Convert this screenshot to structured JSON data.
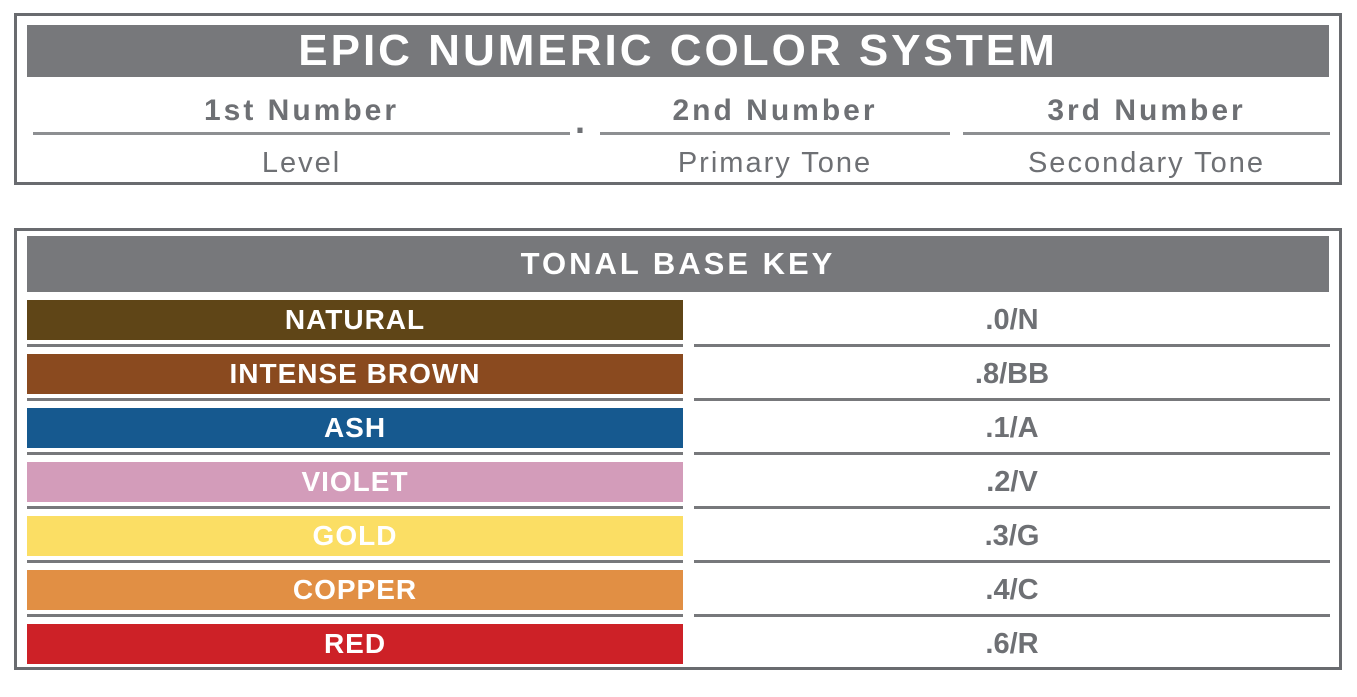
{
  "top_panel": {
    "title": "EPIC NUMERIC COLOR SYSTEM",
    "separator_dot": ".",
    "columns": [
      {
        "number": "1st Number",
        "label": "Level"
      },
      {
        "number": "2nd Number",
        "label": "Primary Tone"
      },
      {
        "number": "3rd Number",
        "label": "Secondary Tone"
      }
    ]
  },
  "tonal_key": {
    "title": "TONAL BASE KEY",
    "rows": [
      {
        "name": "NATURAL",
        "code": ".0/N",
        "color": "#5F4517"
      },
      {
        "name": "INTENSE BROWN",
        "code": ".8/BB",
        "color": "#8A4A1F"
      },
      {
        "name": "ASH",
        "code": ".1/A",
        "color": "#16598F"
      },
      {
        "name": "VIOLET",
        "code": ".2/V",
        "color": "#D39CBA"
      },
      {
        "name": "GOLD",
        "code": ".3/G",
        "color": "#FBDE64"
      },
      {
        "name": "COPPER",
        "code": ".4/C",
        "color": "#E18F44"
      },
      {
        "name": "RED",
        "code": ".6/R",
        "color": "#CD2127"
      }
    ]
  },
  "colors": {
    "header_gray": "#77787B",
    "border_gray": "#696B6F",
    "text_gray": "#6E7074",
    "underline_gray": "#8D8F92"
  }
}
